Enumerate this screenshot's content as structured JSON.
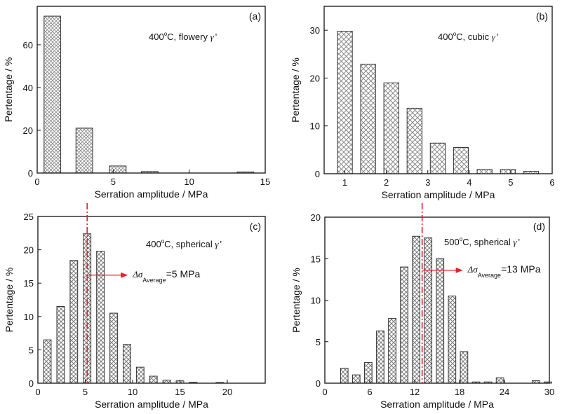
{
  "figure": {
    "hatch_color": "#8a8a8a",
    "bar_edge_color": "#333333",
    "axis_color": "#111111",
    "marker_color": "#e8202a"
  },
  "chart_data": [
    {
      "id": "a",
      "type": "bar",
      "panel_label": "(a)",
      "annotation": {
        "temp": "400",
        "deg": "o",
        "unit": "C, flowery ",
        "gamma": "γ",
        "prime": "'"
      },
      "xlabel": "Serration amplitude / MPa",
      "ylabel": "Pertentage / %",
      "xlim": [
        0,
        15
      ],
      "ylim": [
        0,
        78
      ],
      "xticks": [
        0,
        5,
        10,
        15
      ],
      "yticks": [
        0,
        20,
        40,
        60
      ],
      "bar_width": 1.1,
      "x": [
        1.0,
        3.1,
        5.3,
        7.4,
        13.7
      ],
      "values": [
        73.4,
        21.0,
        3.3,
        0.7,
        0.5
      ],
      "average_line": null
    },
    {
      "id": "b",
      "type": "bar",
      "panel_label": "(b)",
      "annotation": {
        "temp": "400",
        "deg": "o",
        "unit": "C, cubic ",
        "gamma": "γ",
        "prime": "'"
      },
      "xlabel": "Serration amplitude / MPa",
      "ylabel": "Pertentage / %",
      "xlim": [
        0.5,
        6
      ],
      "ylim": [
        0,
        35
      ],
      "xticks": [
        1,
        2,
        3,
        4,
        5,
        6
      ],
      "yticks": [
        0,
        10,
        20,
        30
      ],
      "bar_width": 0.36,
      "x": [
        1.0,
        1.56,
        2.12,
        2.68,
        3.24,
        3.8,
        4.37,
        4.93,
        5.49
      ],
      "values": [
        29.8,
        22.9,
        19.0,
        13.7,
        6.4,
        5.5,
        0.9,
        0.9,
        0.5
      ],
      "average_line": null
    },
    {
      "id": "c",
      "type": "bar",
      "panel_label": "(c)",
      "annotation": {
        "temp": "400",
        "deg": "o",
        "unit": "C, spherical ",
        "gamma": "γ",
        "prime": "'"
      },
      "xlabel": "Serration amplitude / MPa",
      "ylabel": "Pertentage / %",
      "xlim": [
        0,
        24
      ],
      "ylim": [
        0,
        25
      ],
      "xticks": [
        0,
        5,
        10,
        15,
        20
      ],
      "yticks": [
        0,
        5,
        10,
        15,
        20,
        25
      ],
      "bar_width": 0.8,
      "x": [
        1.0,
        2.4,
        3.8,
        5.2,
        6.6,
        8.0,
        9.4,
        10.8,
        12.2,
        13.6,
        15.0,
        16.4,
        19.2
      ],
      "values": [
        6.5,
        11.5,
        18.4,
        22.4,
        19.8,
        10.5,
        5.8,
        2.4,
        1.05,
        0.45,
        0.35,
        0.15,
        0.1
      ],
      "average_line": {
        "x": 5.2,
        "arrow_y": 16.2,
        "symbol": "Δσ",
        "subscript": "Average",
        "text": "=5 MPa"
      }
    },
    {
      "id": "d",
      "type": "bar",
      "panel_label": "(d)",
      "annotation": {
        "temp": "500",
        "deg": "o",
        "unit": "C, spherical ",
        "gamma": "γ",
        "prime": "'"
      },
      "xlabel": "Serration amplitude / MPa",
      "ylabel": "Pertentage / %",
      "xlim": [
        0,
        30
      ],
      "ylim": [
        0,
        20
      ],
      "xticks": [
        0,
        6,
        12,
        18,
        24,
        30
      ],
      "yticks": [
        0,
        5,
        10,
        15,
        20
      ],
      "bar_width": 1.0,
      "x": [
        2.6,
        4.2,
        5.8,
        7.4,
        9.0,
        10.6,
        12.2,
        13.8,
        15.4,
        17.0,
        18.6,
        20.2,
        21.8,
        23.4,
        28.2,
        29.8
      ],
      "values": [
        1.8,
        1.0,
        2.5,
        6.3,
        7.8,
        14.0,
        17.7,
        17.5,
        15.0,
        10.5,
        3.8,
        0.15,
        0.15,
        0.65,
        0.3,
        0.15
      ],
      "average_line": {
        "x": 13.0,
        "arrow_y": 13.6,
        "symbol": "Δσ",
        "subscript": "Average",
        "text": "=13 MPa"
      }
    }
  ]
}
